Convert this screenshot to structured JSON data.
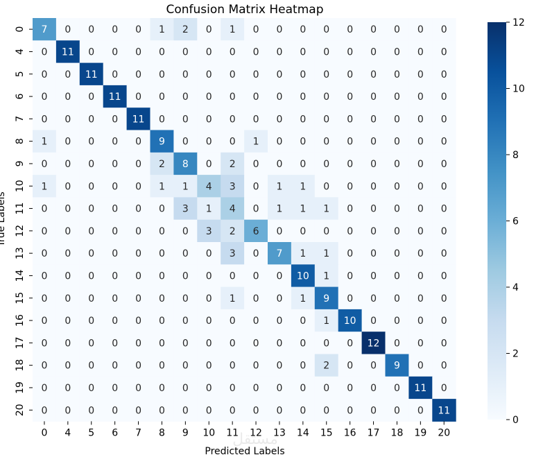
{
  "chart_data": {
    "type": "heatmap",
    "title": "Confusion Matrix Heatmap",
    "xlabel": "Predicted Labels",
    "ylabel": "True Labels",
    "x_categories": [
      "0",
      "4",
      "5",
      "6",
      "7",
      "8",
      "9",
      "10",
      "11",
      "12",
      "13",
      "14",
      "15",
      "16",
      "17",
      "18",
      "19",
      "20"
    ],
    "y_categories": [
      "0",
      "4",
      "5",
      "6",
      "7",
      "8",
      "9",
      "10",
      "11",
      "12",
      "13",
      "14",
      "15",
      "16",
      "17",
      "18",
      "19",
      "20"
    ],
    "values": [
      [
        7,
        0,
        0,
        0,
        0,
        1,
        2,
        0,
        1,
        0,
        0,
        0,
        0,
        0,
        0,
        0,
        0,
        0
      ],
      [
        0,
        11,
        0,
        0,
        0,
        0,
        0,
        0,
        0,
        0,
        0,
        0,
        0,
        0,
        0,
        0,
        0,
        0
      ],
      [
        0,
        0,
        11,
        0,
        0,
        0,
        0,
        0,
        0,
        0,
        0,
        0,
        0,
        0,
        0,
        0,
        0,
        0
      ],
      [
        0,
        0,
        0,
        11,
        0,
        0,
        0,
        0,
        0,
        0,
        0,
        0,
        0,
        0,
        0,
        0,
        0,
        0
      ],
      [
        0,
        0,
        0,
        0,
        11,
        0,
        0,
        0,
        0,
        0,
        0,
        0,
        0,
        0,
        0,
        0,
        0,
        0
      ],
      [
        1,
        0,
        0,
        0,
        0,
        9,
        0,
        0,
        0,
        1,
        0,
        0,
        0,
        0,
        0,
        0,
        0,
        0
      ],
      [
        0,
        0,
        0,
        0,
        0,
        2,
        8,
        0,
        2,
        0,
        0,
        0,
        0,
        0,
        0,
        0,
        0,
        0
      ],
      [
        1,
        0,
        0,
        0,
        0,
        1,
        1,
        4,
        3,
        0,
        1,
        1,
        0,
        0,
        0,
        0,
        0,
        0
      ],
      [
        0,
        0,
        0,
        0,
        0,
        0,
        3,
        1,
        4,
        0,
        1,
        1,
        1,
        0,
        0,
        0,
        0,
        0
      ],
      [
        0,
        0,
        0,
        0,
        0,
        0,
        0,
        3,
        2,
        6,
        0,
        0,
        0,
        0,
        0,
        0,
        0,
        0
      ],
      [
        0,
        0,
        0,
        0,
        0,
        0,
        0,
        0,
        3,
        0,
        7,
        1,
        1,
        0,
        0,
        0,
        0,
        0
      ],
      [
        0,
        0,
        0,
        0,
        0,
        0,
        0,
        0,
        0,
        0,
        0,
        10,
        1,
        0,
        0,
        0,
        0,
        0
      ],
      [
        0,
        0,
        0,
        0,
        0,
        0,
        0,
        0,
        1,
        0,
        0,
        1,
        9,
        0,
        0,
        0,
        0,
        0
      ],
      [
        0,
        0,
        0,
        0,
        0,
        0,
        0,
        0,
        0,
        0,
        0,
        0,
        1,
        10,
        0,
        0,
        0,
        0
      ],
      [
        0,
        0,
        0,
        0,
        0,
        0,
        0,
        0,
        0,
        0,
        0,
        0,
        0,
        0,
        12,
        0,
        0,
        0
      ],
      [
        0,
        0,
        0,
        0,
        0,
        0,
        0,
        0,
        0,
        0,
        0,
        0,
        2,
        0,
        0,
        9,
        0,
        0
      ],
      [
        0,
        0,
        0,
        0,
        0,
        0,
        0,
        0,
        0,
        0,
        0,
        0,
        0,
        0,
        0,
        0,
        11,
        0
      ],
      [
        0,
        0,
        0,
        0,
        0,
        0,
        0,
        0,
        0,
        0,
        0,
        0,
        0,
        0,
        0,
        0,
        0,
        11
      ]
    ],
    "colorbar": {
      "min": 0,
      "max": 12,
      "ticks": [
        "0",
        "2",
        "4",
        "6",
        "8",
        "10",
        "12"
      ]
    },
    "colormap": "Blues",
    "annotate": true
  },
  "watermark": "مستقل"
}
